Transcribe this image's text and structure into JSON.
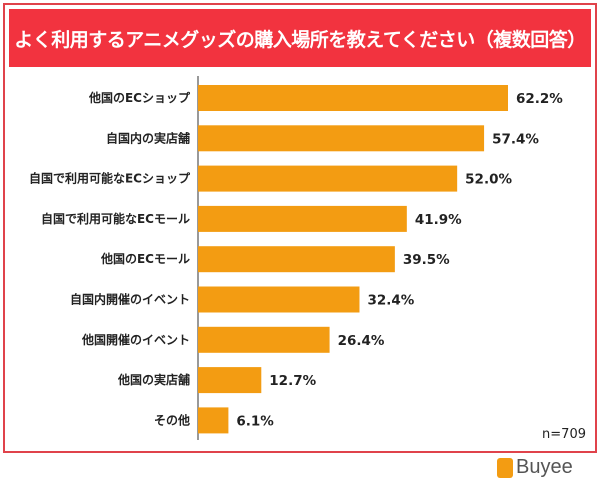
{
  "chart_data": {
    "type": "bar",
    "orientation": "horizontal",
    "title": "よく利用するアニメグッズの購入場所を教えてください（複数回答）",
    "categories": [
      "他国のECショップ",
      "自国内の実店舗",
      "自国で利用可能なECショップ",
      "自国で利用可能なECモール",
      "他国のECモール",
      "自国内開催のイベント",
      "他国開催のイベント",
      "他国の実店舗",
      "その他"
    ],
    "values": [
      62.2,
      57.4,
      52.0,
      41.9,
      39.5,
      32.4,
      26.4,
      12.7,
      6.1
    ],
    "value_labels": [
      "62.2%",
      "57.4%",
      "52.0%",
      "41.9%",
      "39.5%",
      "32.4%",
      "26.4%",
      "12.7%",
      "6.1%"
    ],
    "xlim": [
      0,
      70
    ],
    "grid": false,
    "bar_color": "#f39c12",
    "title_color": "#f2333f",
    "note": "n=709"
  },
  "logo": {
    "text": "Buyee"
  }
}
